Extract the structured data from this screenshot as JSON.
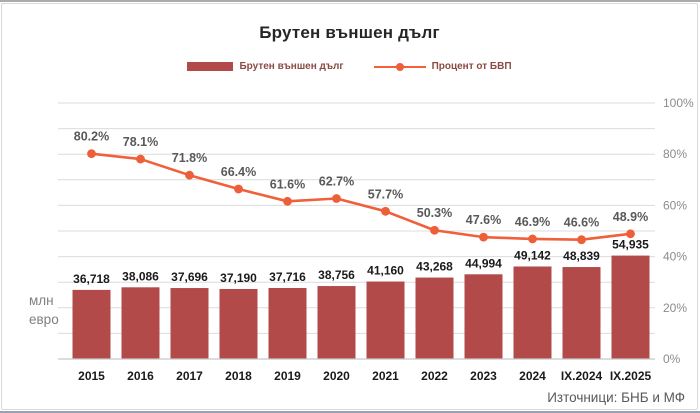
{
  "title": "Брутен външен дълг",
  "legend": [
    {
      "label": "Брутен външен дълг",
      "type": "bar"
    },
    {
      "label": "Процент от БВП",
      "type": "line"
    }
  ],
  "unit_label": "млн\nевро",
  "source": "Източници: БНБ и МФ",
  "colors": {
    "bar": "#b14a48",
    "line": "#f0603a",
    "marker": "#ed5f39",
    "gridline": "#dcdcdc",
    "baseline": "#c6c6c6",
    "title": "#262626",
    "legend_text": "#8b4a44",
    "bar_label": "#1a1a1a",
    "pct_label": "#595959",
    "axis_label": "#8c8c8c"
  },
  "chart_data": {
    "type": "bar",
    "subtype": "bar-with-line-overlay",
    "title": "Брутен външен дълг",
    "categories": [
      "2015",
      "2016",
      "2017",
      "2018",
      "2019",
      "2020",
      "2021",
      "2022",
      "2023",
      "2024",
      "IX.2024",
      "IX.2025"
    ],
    "series": [
      {
        "name": "Брутен външен дълг",
        "type": "bar",
        "unit": "млн евро",
        "values": [
          36718,
          38086,
          37696,
          37190,
          37716,
          38756,
          41160,
          43268,
          44994,
          49142,
          48839,
          54935
        ],
        "labels": [
          "36,718",
          "38,086",
          "37,696",
          "37,190",
          "37,716",
          "38,756",
          "41,160",
          "43,268",
          "44,994",
          "49,142",
          "48,839",
          "54,935"
        ]
      },
      {
        "name": "Процент от БВП",
        "type": "line",
        "unit": "% от БВП",
        "values": [
          80.2,
          78.1,
          71.8,
          66.4,
          61.6,
          62.7,
          57.7,
          50.3,
          47.6,
          46.9,
          46.6,
          48.9
        ],
        "labels": [
          "80.2%",
          "78.1%",
          "71.8%",
          "66.4%",
          "61.6%",
          "62.7%",
          "57.7%",
          "50.3%",
          "47.6%",
          "46.9%",
          "46.6%",
          "48.9%"
        ]
      }
    ],
    "right_axis": {
      "min": 0,
      "max": 100,
      "gridline_step": 10,
      "ticks": [
        {
          "label": "0%",
          "value": 0
        },
        {
          "label": "20%",
          "value": 20
        },
        {
          "label": "40%",
          "value": 40
        },
        {
          "label": "60%",
          "value": 60
        },
        {
          "label": "80%",
          "value": 80
        },
        {
          "label": "100%",
          "value": 100
        }
      ]
    },
    "legend_position": "top",
    "grid": true
  }
}
